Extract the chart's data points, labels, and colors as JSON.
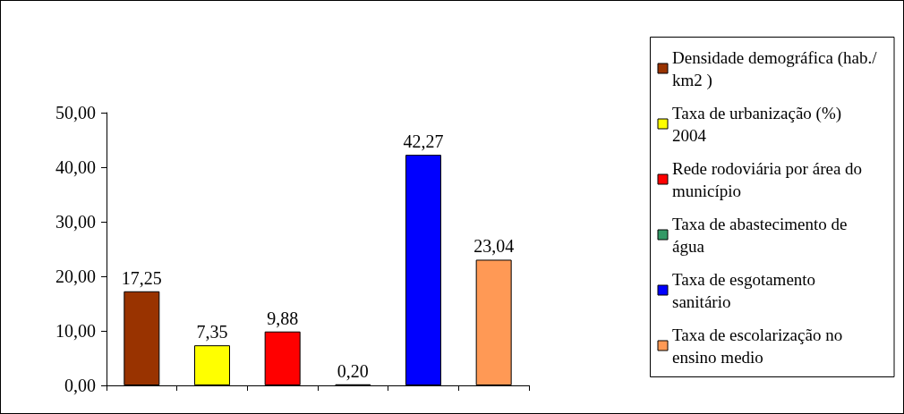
{
  "chart_data": {
    "type": "bar",
    "categories": [
      null,
      null,
      null,
      null,
      null,
      null
    ],
    "series": [
      {
        "name": "Densidade demográfica (hab./km2 )",
        "color": "#993300",
        "values": [
          17.25,
          null,
          null,
          null,
          null,
          null
        ],
        "value_labels": [
          "17,25",
          null,
          null,
          null,
          null,
          null
        ]
      },
      {
        "name": "Taxa de urbanização (%) 2004",
        "color": "#ffff00",
        "values": [
          null,
          7.35,
          null,
          null,
          null,
          null
        ],
        "value_labels": [
          null,
          "7,35",
          null,
          null,
          null,
          null
        ]
      },
      {
        "name": "Rede rodoviária por área do município",
        "color": "#ff0000",
        "values": [
          null,
          null,
          9.88,
          null,
          null,
          null
        ],
        "value_labels": [
          null,
          null,
          "9,88",
          null,
          null,
          null
        ]
      },
      {
        "name": "Taxa de abastecimento de água",
        "color": "#339966",
        "values": [
          null,
          null,
          null,
          0.2,
          null,
          null
        ],
        "value_labels": [
          null,
          null,
          null,
          "0,20",
          null,
          null
        ]
      },
      {
        "name": "Taxa de esgotamento sanitário",
        "color": "#0000ff",
        "values": [
          null,
          null,
          null,
          null,
          42.27,
          null
        ],
        "value_labels": [
          null,
          null,
          null,
          null,
          "42,27",
          null
        ]
      },
      {
        "name": "Taxa de escolarização no ensino medio",
        "color": "#ff9955",
        "values": [
          null,
          null,
          null,
          null,
          null,
          23.04
        ],
        "value_labels": [
          null,
          null,
          null,
          null,
          null,
          "23,04"
        ]
      }
    ],
    "ylim": [
      0,
      50
    ],
    "yticks": [
      {
        "value": 0,
        "label": "0,00"
      },
      {
        "value": 10,
        "label": "10,00"
      },
      {
        "value": 20,
        "label": "20,00"
      },
      {
        "value": 30,
        "label": "30,00"
      },
      {
        "value": 40,
        "label": "40,00"
      },
      {
        "value": 50,
        "label": "50,00"
      }
    ],
    "grid": false,
    "legend": "right"
  }
}
